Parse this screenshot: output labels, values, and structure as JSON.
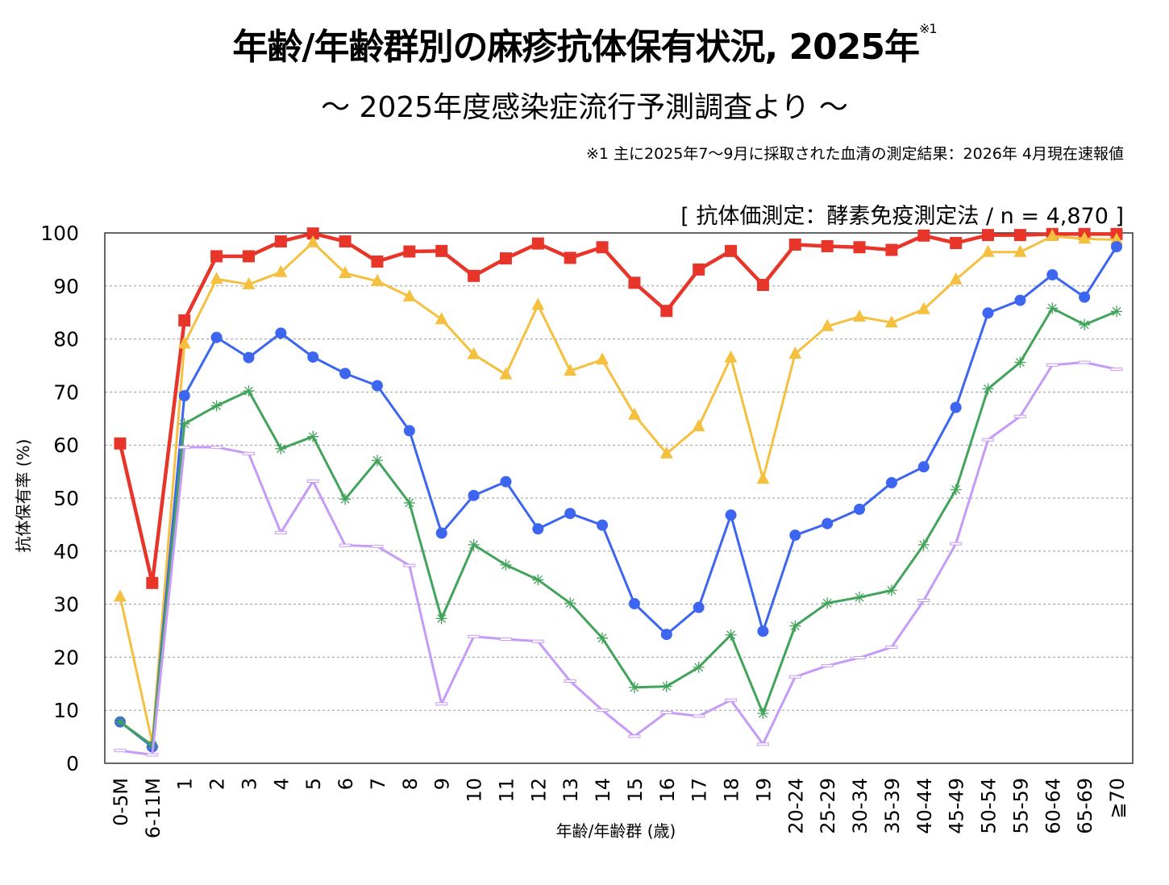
{
  "header": {
    "title": "年齢/年齢群別の麻疹抗体保有状況, 2025年",
    "title_note": "※1",
    "subtitle": "～ 2025年度感染症流行予測調査より ～",
    "footnote": "※1  主に2025年7～9月に採取された血清の測定結果：2026年 4月現在速報値",
    "method": "[ 抗体価測定：酵素免疫測定法 / n = 4,870 ]"
  },
  "chart_data": {
    "type": "line",
    "title": "年齢/年齢群別の麻疹抗体保有状況, 2025年",
    "xlabel": "年齢/年齢群 (歳)",
    "ylabel": "抗体保有率 (%)",
    "ylim": [
      0,
      100
    ],
    "yticks": [
      0,
      10,
      20,
      30,
      40,
      50,
      60,
      70,
      80,
      90,
      100
    ],
    "grid": true,
    "categories": [
      "0-5M",
      "6-11M",
      "1",
      "2",
      "3",
      "4",
      "5",
      "6",
      "7",
      "8",
      "9",
      "10",
      "11",
      "12",
      "13",
      "14",
      "15",
      "16",
      "17",
      "18",
      "19",
      "20-24",
      "25-29",
      "30-34",
      "35-39",
      "40-44",
      "45-49",
      "50-54",
      "55-59",
      "60-64",
      "65-69",
      "≧70"
    ],
    "series": [
      {
        "name": "red",
        "color": "#e8352a",
        "marker": "square",
        "values": [
          60.3,
          34.0,
          83.5,
          95.6,
          95.6,
          98.4,
          99.9,
          98.4,
          94.6,
          96.5,
          96.6,
          91.9,
          95.2,
          98.0,
          95.3,
          97.3,
          90.6,
          85.3,
          93.1,
          96.6,
          90.2,
          97.8,
          97.5,
          97.3,
          96.8,
          99.5,
          98.1,
          99.6,
          99.6,
          99.8,
          99.8,
          99.8
        ]
      },
      {
        "name": "yellow",
        "color": "#f5c03f",
        "marker": "triangle",
        "values": [
          31.4,
          3.9,
          79.1,
          91.3,
          90.3,
          92.6,
          98.2,
          92.4,
          90.9,
          88.0,
          83.7,
          77.1,
          73.3,
          86.4,
          74.0,
          76.1,
          65.7,
          58.4,
          63.5,
          76.5,
          53.6,
          77.2,
          82.4,
          84.2,
          83.1,
          85.6,
          91.2,
          96.4,
          96.4,
          99.4,
          98.9,
          98.7
        ]
      },
      {
        "name": "blue",
        "color": "#3c65f0",
        "marker": "circle",
        "values": [
          7.8,
          3.1,
          69.3,
          80.3,
          76.5,
          81.1,
          76.6,
          73.5,
          71.2,
          62.7,
          43.4,
          50.5,
          53.1,
          44.2,
          47.1,
          44.9,
          30.1,
          24.3,
          29.4,
          46.8,
          24.9,
          43.0,
          45.2,
          47.9,
          52.9,
          55.9,
          67.1,
          84.9,
          87.3,
          92.1,
          87.9,
          97.4
        ]
      },
      {
        "name": "green",
        "color": "#42a35a",
        "marker": "asterisk",
        "values": [
          7.8,
          3.4,
          64.0,
          67.4,
          70.2,
          59.3,
          61.6,
          49.8,
          57.1,
          49.1,
          27.3,
          41.2,
          37.4,
          34.6,
          30.2,
          23.6,
          14.3,
          14.5,
          18.1,
          24.2,
          9.4,
          25.9,
          30.2,
          31.3,
          32.6,
          41.2,
          51.6,
          70.6,
          75.6,
          85.8,
          82.7,
          85.2
        ]
      },
      {
        "name": "purple",
        "color": "#c69bf7",
        "marker": "dash",
        "values": [
          2.4,
          1.6,
          59.6,
          59.6,
          58.4,
          43.5,
          53.2,
          41.1,
          40.9,
          37.3,
          11.2,
          23.9,
          23.4,
          23.0,
          15.5,
          10.0,
          5.1,
          9.6,
          8.9,
          11.9,
          3.6,
          16.3,
          18.4,
          19.9,
          21.9,
          30.7,
          41.4,
          61.0,
          65.4,
          75.1,
          75.6,
          74.3
        ]
      }
    ]
  }
}
